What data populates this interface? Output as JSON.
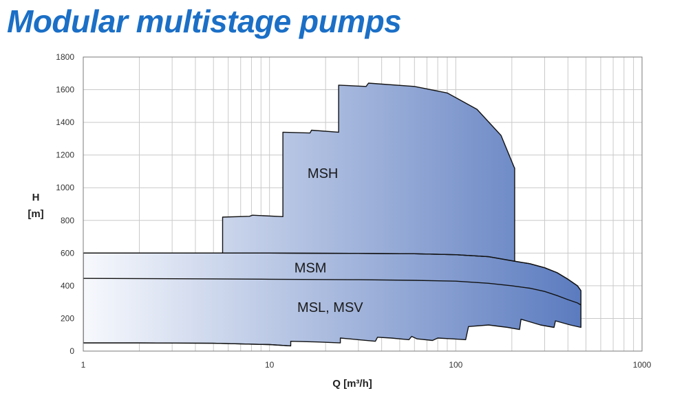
{
  "title": "Modular multistage pumps",
  "chart_data": {
    "type": "area",
    "title": "Modular multistage pumps",
    "xlabel": "Q [m³/h]",
    "ylabel_line1": "H",
    "ylabel_line2": "[m]",
    "xscale": "log",
    "xlim": [
      1,
      1000
    ],
    "ylim": [
      0,
      1800
    ],
    "x_ticks": [
      "1",
      "10",
      "100",
      "1000"
    ],
    "y_ticks": [
      "0",
      "200",
      "400",
      "600",
      "800",
      "1000",
      "1200",
      "1400",
      "1600",
      "1800"
    ],
    "grid": true,
    "fill_gradient": [
      "#f7f9fd",
      "#5b7bbf"
    ],
    "outline_color": "#111111",
    "regions": [
      {
        "name": "MSH",
        "label_at": [
          16,
          1090
        ],
        "boundary": [
          [
            5.6,
            600
          ],
          [
            5.6,
            820
          ],
          [
            7.8,
            825
          ],
          [
            8.1,
            832
          ],
          [
            11.8,
            823
          ],
          [
            11.8,
            1340
          ],
          [
            16.5,
            1335
          ],
          [
            16.8,
            1352
          ],
          [
            23.5,
            1340
          ],
          [
            23.5,
            1628
          ],
          [
            33,
            1620
          ],
          [
            34,
            1640
          ],
          [
            60,
            1620
          ],
          [
            90,
            1580
          ],
          [
            130,
            1480
          ],
          [
            175,
            1320
          ],
          [
            205,
            1130
          ],
          [
            207,
            1120
          ],
          [
            207,
            550
          ],
          [
            150,
            578
          ],
          [
            100,
            590
          ],
          [
            60,
            596
          ],
          [
            30,
            598
          ],
          [
            10,
            600
          ],
          [
            5.6,
            600
          ]
        ]
      },
      {
        "name": "MSM",
        "label_at": [
          13.6,
          510
        ]
      },
      {
        "name": "MSL, MSV",
        "label_at": [
          14.1,
          270
        ]
      }
    ],
    "lower_region_boundary": [
      [
        1,
        600
      ],
      [
        5,
        600
      ],
      [
        10,
        600
      ],
      [
        30,
        598
      ],
      [
        60,
        596
      ],
      [
        100,
        590
      ],
      [
        150,
        578
      ],
      [
        207,
        550
      ],
      [
        250,
        535
      ],
      [
        300,
        510
      ],
      [
        350,
        480
      ],
      [
        400,
        440
      ],
      [
        450,
        400
      ],
      [
        470,
        370
      ],
      [
        470,
        145
      ],
      [
        412,
        160
      ],
      [
        343,
        185
      ],
      [
        337,
        145
      ],
      [
        285,
        160
      ],
      [
        224,
        195
      ],
      [
        220,
        132
      ],
      [
        190,
        145
      ],
      [
        150,
        160
      ],
      [
        117,
        150
      ],
      [
        113,
        70
      ],
      [
        96,
        75
      ],
      [
        80,
        80
      ],
      [
        75,
        65
      ],
      [
        62,
        75
      ],
      [
        58,
        90
      ],
      [
        56,
        70
      ],
      [
        45,
        80
      ],
      [
        38,
        85
      ],
      [
        37,
        60
      ],
      [
        30,
        70
      ],
      [
        24,
        80
      ],
      [
        24,
        50
      ],
      [
        18,
        56
      ],
      [
        13,
        60
      ],
      [
        13,
        32
      ],
      [
        10,
        40
      ],
      [
        5,
        48
      ],
      [
        2,
        50
      ],
      [
        1,
        50
      ],
      [
        1,
        600
      ]
    ],
    "curves": [
      {
        "points": [
          [
            1,
            600
          ],
          [
            5,
            600
          ],
          [
            10,
            600
          ],
          [
            30,
            598
          ],
          [
            60,
            596
          ],
          [
            100,
            590
          ],
          [
            150,
            578
          ],
          [
            207,
            550
          ],
          [
            250,
            535
          ],
          [
            300,
            510
          ],
          [
            350,
            480
          ],
          [
            400,
            440
          ],
          [
            450,
            400
          ],
          [
            470,
            370
          ]
        ]
      },
      {
        "points": [
          [
            1,
            445
          ],
          [
            5,
            442
          ],
          [
            10,
            440
          ],
          [
            30,
            437
          ],
          [
            60,
            433
          ],
          [
            100,
            428
          ],
          [
            150,
            415
          ],
          [
            200,
            400
          ],
          [
            250,
            385
          ],
          [
            300,
            365
          ],
          [
            350,
            340
          ],
          [
            400,
            315
          ],
          [
            450,
            295
          ],
          [
            470,
            282
          ]
        ]
      },
      {
        "points": [
          [
            1,
            50
          ],
          [
            2,
            50
          ],
          [
            5,
            48
          ],
          [
            10,
            40
          ],
          [
            13,
            32
          ]
        ]
      }
    ]
  }
}
